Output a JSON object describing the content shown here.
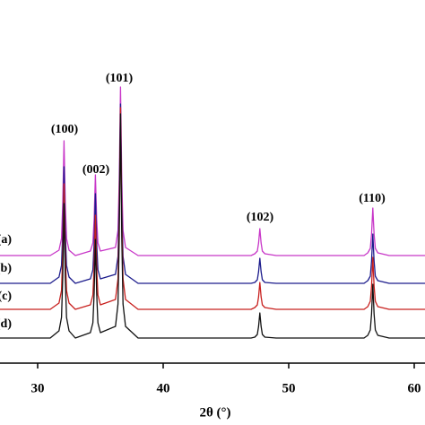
{
  "chart_data": {
    "type": "line",
    "x_label": "2θ (°)",
    "xlim": [
      27,
      61
    ],
    "xticks": [
      30,
      40,
      50,
      60
    ],
    "ylim": [
      0,
      400
    ],
    "annotations": [
      "(100)",
      "(002)",
      "(101)",
      "(102)",
      "(110)"
    ],
    "x": [
      27,
      28,
      29,
      30,
      31,
      31.7,
      31.9,
      32.0,
      32.1,
      32.2,
      32.3,
      32.5,
      33,
      34.2,
      34.4,
      34.5,
      34.6,
      34.7,
      34.8,
      35.0,
      36.2,
      36.4,
      36.5,
      36.6,
      36.7,
      36.8,
      37.0,
      38,
      39,
      40,
      41,
      42,
      43,
      44,
      45,
      46,
      47,
      47.3,
      47.5,
      47.6,
      47.7,
      47.8,
      47.9,
      48.1,
      49,
      50,
      51,
      52,
      53,
      54,
      55,
      56,
      56.3,
      56.5,
      56.6,
      56.7,
      56.8,
      56.9,
      57.1,
      58,
      59,
      60,
      61
    ],
    "series": [
      {
        "name": "(a)",
        "color": "#c837c8",
        "values": [
          120,
          120,
          120,
          120,
          120,
          126,
          139,
          178,
          248,
          178,
          139,
          126,
          120,
          125,
          134,
          161,
          210,
          161,
          134,
          125,
          129,
          148,
          205,
          308,
          205,
          148,
          129,
          120,
          120,
          120,
          120,
          120,
          120,
          120,
          120,
          120,
          120,
          122,
          125,
          134,
          150,
          134,
          125,
          122,
          120,
          120,
          120,
          120,
          120,
          120,
          120,
          120,
          123,
          128,
          144,
          173,
          144,
          128,
          123,
          120,
          120,
          120,
          120
        ]
      },
      {
        "name": "(b)",
        "color": "#1c1c8c",
        "values": [
          89,
          89,
          89,
          89,
          89,
          96,
          109,
          148,
          219,
          148,
          109,
          96,
          89,
          94,
          104,
          134,
          189,
          134,
          104,
          94,
          99,
          119,
          179,
          289,
          179,
          119,
          99,
          89,
          89,
          89,
          89,
          89,
          89,
          89,
          89,
          89,
          89,
          90,
          93,
          102,
          117,
          102,
          93,
          90,
          89,
          89,
          89,
          89,
          89,
          89,
          89,
          89,
          92,
          97,
          114,
          144,
          114,
          97,
          92,
          89,
          89,
          89,
          89
        ]
      },
      {
        "name": "(c)",
        "color": "#c8201e",
        "values": [
          60,
          60,
          60,
          60,
          60,
          67,
          81,
          123,
          200,
          123,
          81,
          67,
          60,
          65,
          76,
          107,
          165,
          107,
          76,
          65,
          71,
          94,
          161,
          285,
          161,
          94,
          71,
          60,
          60,
          60,
          60,
          60,
          60,
          60,
          60,
          60,
          60,
          62,
          65,
          74,
          90,
          74,
          65,
          62,
          60,
          60,
          60,
          60,
          60,
          60,
          60,
          60,
          63,
          69,
          86,
          118,
          86,
          69,
          63,
          60,
          60,
          60,
          60
        ]
      },
      {
        "name": "(d)",
        "color": "#111111",
        "values": [
          28,
          28,
          28,
          28,
          28,
          36,
          51,
          96,
          178,
          96,
          51,
          36,
          28,
          34,
          45,
          78,
          138,
          78,
          45,
          34,
          41,
          66,
          141,
          278,
          141,
          66,
          41,
          28,
          28,
          28,
          28,
          28,
          28,
          28,
          28,
          28,
          28,
          29,
          32,
          41,
          56,
          41,
          32,
          29,
          28,
          28,
          28,
          28,
          28,
          28,
          28,
          28,
          31,
          37,
          55,
          88,
          55,
          37,
          31,
          28,
          28,
          28,
          28
        ]
      }
    ]
  }
}
